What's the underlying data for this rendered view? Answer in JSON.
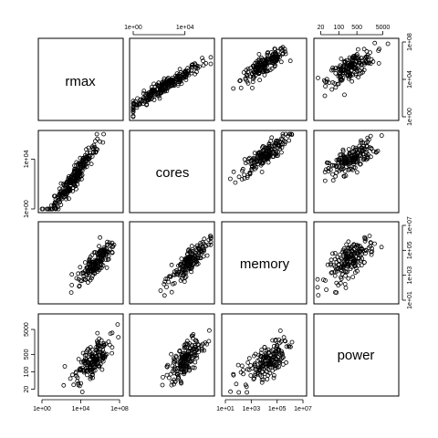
{
  "chart_data": {
    "type": "scatter",
    "kind": "scatterplot-matrix",
    "variables": [
      "rmax",
      "cores",
      "memory",
      "power"
    ],
    "log_axes": true,
    "grid": false,
    "legend": false,
    "scales": {
      "rmax": {
        "range": [
          1,
          100000000.0
        ],
        "ticks": [
          1,
          10000.0,
          100000000.0
        ],
        "tick_labels": [
          "1e+00",
          "1e+04",
          "1e+08"
        ]
      },
      "cores": {
        "range": [
          1,
          1000000.0
        ],
        "ticks": [
          1,
          10000.0
        ],
        "tick_labels": [
          "1e+00",
          "1e+04"
        ]
      },
      "memory": {
        "range": [
          10,
          10000000.0
        ],
        "ticks": [
          10,
          1000.0,
          100000.0,
          10000000.0
        ],
        "tick_labels": [
          "1e+01",
          "1e+03",
          "1e+05",
          "1e+07"
        ]
      },
      "power": {
        "range": [
          15,
          15000
        ],
        "ticks": [
          20,
          100,
          500,
          5000
        ],
        "tick_labels": [
          "20",
          "100",
          "500",
          "5000"
        ]
      }
    },
    "tick_label_sides": {
      "top": [
        null,
        "cores",
        null,
        "power"
      ],
      "right": [
        "rmax",
        null,
        "memory",
        null
      ],
      "bottom": [
        "rmax",
        null,
        "memory",
        null
      ],
      "left": [
        null,
        "cores",
        null,
        "power"
      ]
    },
    "point_clusters": [
      {
        "pair": [
          "cores",
          "rmax"
        ],
        "center": [
          300,
          2000
        ],
        "spread": [
          1.4,
          1.2
        ],
        "corr": 0.95,
        "n": 260
      },
      {
        "pair": [
          "memory",
          "rmax"
        ],
        "center": [
          10000,
          300000
        ],
        "spread": [
          0.9,
          0.9
        ],
        "corr": 0.85,
        "n": 180
      },
      {
        "pair": [
          "power",
          "rmax"
        ],
        "center": [
          300,
          200000
        ],
        "spread": [
          0.45,
          0.9
        ],
        "corr": 0.7,
        "n": 180
      },
      {
        "pair": [
          "memory",
          "cores"
        ],
        "center": [
          10000,
          20000
        ],
        "spread": [
          0.9,
          0.8
        ],
        "corr": 0.85,
        "n": 180
      },
      {
        "pair": [
          "power",
          "cores"
        ],
        "center": [
          300,
          10000
        ],
        "spread": [
          0.45,
          0.7
        ],
        "corr": 0.7,
        "n": 180
      },
      {
        "pair": [
          "power",
          "memory"
        ],
        "center": [
          300,
          20000
        ],
        "spread": [
          0.45,
          0.9
        ],
        "corr": 0.7,
        "n": 180
      }
    ]
  }
}
